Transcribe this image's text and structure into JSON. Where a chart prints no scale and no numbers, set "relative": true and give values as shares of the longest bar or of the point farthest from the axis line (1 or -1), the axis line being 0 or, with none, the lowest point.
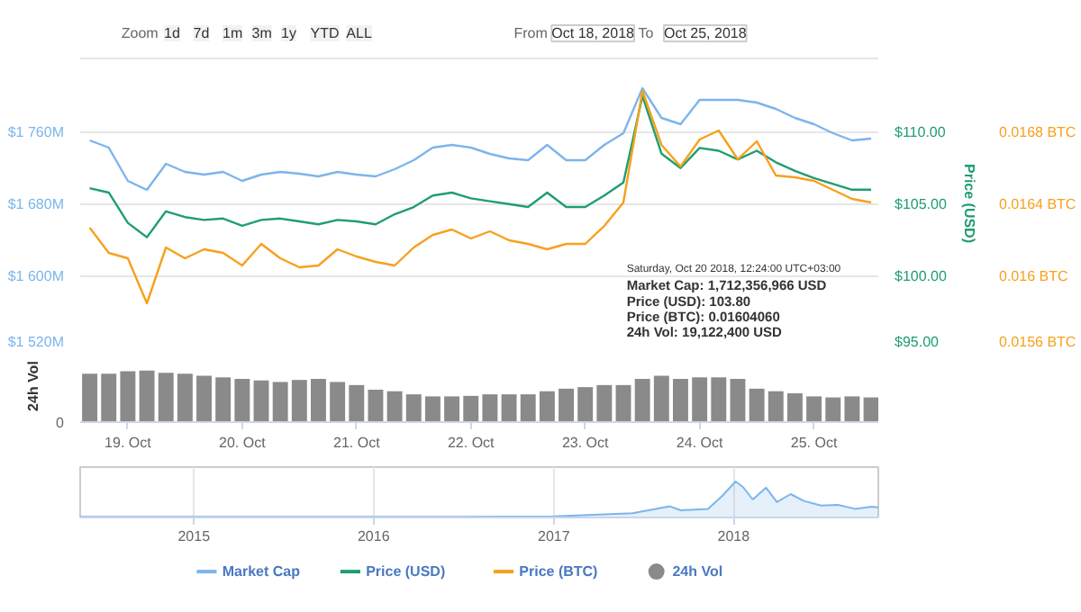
{
  "chart_data": [
    {
      "type": "line",
      "x": [
        "2018-10-18T16:00",
        "2018-10-18T20:00",
        "2018-10-19T00:00",
        "2018-10-19T04:00",
        "2018-10-19T08:00",
        "2018-10-19T12:00",
        "2018-10-19T16:00",
        "2018-10-19T20:00",
        "2018-10-20T00:00",
        "2018-10-20T04:00",
        "2018-10-20T08:00",
        "2018-10-20T12:00",
        "2018-10-20T16:00",
        "2018-10-20T20:00",
        "2018-10-21T00:00",
        "2018-10-21T04:00",
        "2018-10-21T08:00",
        "2018-10-21T12:00",
        "2018-10-21T16:00",
        "2018-10-21T20:00",
        "2018-10-22T00:00",
        "2018-10-22T04:00",
        "2018-10-22T08:00",
        "2018-10-22T12:00",
        "2018-10-22T16:00",
        "2018-10-22T20:00",
        "2018-10-23T00:00",
        "2018-10-23T04:00",
        "2018-10-23T08:00",
        "2018-10-23T12:00",
        "2018-10-23T16:00",
        "2018-10-23T20:00",
        "2018-10-24T00:00",
        "2018-10-24T04:00",
        "2018-10-24T08:00",
        "2018-10-24T12:00",
        "2018-10-24T16:00",
        "2018-10-24T20:00",
        "2018-10-25T00:00",
        "2018-10-25T04:00",
        "2018-10-25T08:00",
        "2018-10-25T12:00"
      ],
      "xlim": [
        "2018-10-18T14:00",
        "2018-10-25T13:30"
      ],
      "ylim": [
        1520,
        1842
      ],
      "yticks": [
        {
          "value": 1520,
          "label": "$1 520M"
        },
        {
          "value": 1600,
          "label": "$1 600M"
        },
        {
          "value": 1680,
          "label": "$1 680M"
        },
        {
          "value": 1760,
          "label": "$1 760M"
        }
      ],
      "y2lim": [
        95,
        115.1
      ],
      "y2ticks": [
        {
          "value": 95,
          "label": "$95.00"
        },
        {
          "value": 100,
          "label": "$100.00"
        },
        {
          "value": 105,
          "label": "$105.00"
        },
        {
          "value": 110,
          "label": "$110.00"
        }
      ],
      "y2label": "Price (USD)",
      "y3lim": [
        0.0156,
        0.01721
      ],
      "y3ticks": [
        {
          "value": 0.0156,
          "label": "0.0156 BTC"
        },
        {
          "value": 0.016,
          "label": "0.016 BTC"
        },
        {
          "value": 0.0164,
          "label": "0.0164 BTC"
        },
        {
          "value": 0.0168,
          "label": "0.0168 BTC"
        }
      ],
      "grid": "y",
      "tick_labels": "y",
      "legend": "bottom",
      "annotations": [
        "Zoom",
        "1d",
        "7d",
        "1m",
        "3m",
        "1y",
        "YTD",
        "ALL",
        "From",
        "Oct 18, 2018",
        "To",
        "Oct 25, 2018",
        "Saturday, Oct 20 2018, 12:24:00 UTC+03:00\nMarket Cap: 1,712,356,966 USD\nPrice (USD): 103.80\nPrice (BTC): 0.01604060\n24h Vol: 19,122,400 USD"
      ],
      "series": [
        {
          "name": "Market Cap",
          "color": "#7cb5ec",
          "values": [
            1751,
            1743,
            1706,
            1696,
            1725,
            1716,
            1713,
            1716,
            1706,
            1713,
            1716,
            1714,
            1711,
            1716,
            1713,
            1711,
            1719,
            1729,
            1743,
            1746,
            1743,
            1736,
            1731,
            1729,
            1746,
            1729,
            1729,
            1746,
            1759,
            1809,
            1776,
            1769,
            1796,
            1796,
            1796,
            1793,
            1786,
            1776,
            1769,
            1759,
            1751,
            1753
          ]
        },
        {
          "name": "Price (USD)",
          "color": "#1f9e6e",
          "axis": "y2",
          "values": [
            106.1,
            105.8,
            103.7,
            102.7,
            104.5,
            104.1,
            103.9,
            104.0,
            103.5,
            103.9,
            104.0,
            103.8,
            103.6,
            103.9,
            103.8,
            103.6,
            104.3,
            104.8,
            105.6,
            105.8,
            105.4,
            105.2,
            105.0,
            104.8,
            105.8,
            104.8,
            104.8,
            105.6,
            106.5,
            112.5,
            108.5,
            107.5,
            108.9,
            108.7,
            108.1,
            108.7,
            107.9,
            107.3,
            106.8,
            106.4,
            106.0,
            106.0
          ]
        },
        {
          "name": "Price (BTC)",
          "color": "#f7a01c",
          "axis": "y3",
          "values": [
            0.01627,
            0.01613,
            0.0161,
            0.01585,
            0.01616,
            0.0161,
            0.01615,
            0.01613,
            0.01606,
            0.01618,
            0.0161,
            0.01605,
            0.01606,
            0.01615,
            0.01611,
            0.01608,
            0.01606,
            0.01616,
            0.01623,
            0.01626,
            0.01621,
            0.01625,
            0.0162,
            0.01618,
            0.01615,
            0.01618,
            0.01618,
            0.01628,
            0.01641,
            0.01703,
            0.01673,
            0.01661,
            0.01676,
            0.01681,
            0.01665,
            0.01675,
            0.01656,
            0.01655,
            0.01653,
            0.01648,
            0.01643,
            0.01641
          ]
        }
      ]
    },
    {
      "type": "bar",
      "relative": true,
      "x": [
        "2018-10-18T16:00",
        "2018-10-18T20:00",
        "2018-10-19T00:00",
        "2018-10-19T04:00",
        "2018-10-19T08:00",
        "2018-10-19T12:00",
        "2018-10-19T16:00",
        "2018-10-19T20:00",
        "2018-10-20T00:00",
        "2018-10-20T04:00",
        "2018-10-20T08:00",
        "2018-10-20T12:00",
        "2018-10-20T16:00",
        "2018-10-20T20:00",
        "2018-10-21T00:00",
        "2018-10-21T04:00",
        "2018-10-21T08:00",
        "2018-10-21T12:00",
        "2018-10-21T16:00",
        "2018-10-21T20:00",
        "2018-10-22T00:00",
        "2018-10-22T04:00",
        "2018-10-22T08:00",
        "2018-10-22T12:00",
        "2018-10-22T16:00",
        "2018-10-22T20:00",
        "2018-10-23T00:00",
        "2018-10-23T04:00",
        "2018-10-23T08:00",
        "2018-10-23T12:00",
        "2018-10-23T16:00",
        "2018-10-23T20:00",
        "2018-10-24T00:00",
        "2018-10-24T04:00",
        "2018-10-24T08:00",
        "2018-10-24T12:00",
        "2018-10-24T16:00",
        "2018-10-24T20:00",
        "2018-10-25T00:00",
        "2018-10-25T04:00",
        "2018-10-25T08:00",
        "2018-10-25T12:00"
      ],
      "xlim": [
        "2018-10-18T14:00",
        "2018-10-25T13:30"
      ],
      "xticks": [
        {
          "value": "2018-10-19",
          "label": "19. Oct"
        },
        {
          "value": "2018-10-20",
          "label": "20. Oct"
        },
        {
          "value": "2018-10-21",
          "label": "21. Oct"
        },
        {
          "value": "2018-10-22",
          "label": "22. Oct"
        },
        {
          "value": "2018-10-23",
          "label": "23. Oct"
        },
        {
          "value": "2018-10-24",
          "label": "24. Oct"
        },
        {
          "value": "2018-10-25",
          "label": "25. Oct"
        }
      ],
      "ylabel": "24h Vol",
      "annotations": [
        "0"
      ],
      "legend": "bottom",
      "series": [
        {
          "name": "24h Vol",
          "color": "#8a8a8a",
          "values": [
            0.94,
            0.94,
            0.99,
            1,
            0.96,
            0.94,
            0.9,
            0.87,
            0.84,
            0.81,
            0.78,
            0.82,
            0.84,
            0.78,
            0.72,
            0.63,
            0.6,
            0.54,
            0.5,
            0.5,
            0.51,
            0.54,
            0.54,
            0.54,
            0.6,
            0.65,
            0.68,
            0.72,
            0.72,
            0.84,
            0.9,
            0.84,
            0.87,
            0.87,
            0.84,
            0.65,
            0.6,
            0.56,
            0.5,
            0.48,
            0.5,
            0.48
          ]
        }
      ]
    },
    {
      "type": "area",
      "relative": true,
      "x": [
        "2014-05-15",
        "2015-06-01",
        "2016-06-01",
        "2017-01-01",
        "2017-06-10",
        "2017-08-25",
        "2017-09-16",
        "2017-11-10",
        "2017-12-09",
        "2018-01-05",
        "2018-01-20",
        "2018-02-09",
        "2018-03-08",
        "2018-03-30",
        "2018-04-27",
        "2018-05-24",
        "2018-06-28",
        "2018-08-01",
        "2018-09-05",
        "2018-10-08",
        "2018-10-22"
      ],
      "xlim": [
        "2014-05-15",
        "2018-10-22"
      ],
      "xticks": [
        {
          "value": "2015-01-01",
          "label": "2015"
        },
        {
          "value": "2016-01-01",
          "label": "2016"
        },
        {
          "value": "2017-01-01",
          "label": "2017"
        },
        {
          "value": "2018-01-01",
          "label": "2018"
        }
      ],
      "grid": "x",
      "series": [
        {
          "color": "#7cb5ec",
          "values": [
            0.02,
            0.02,
            0.02,
            0.03,
            0.12,
            0.31,
            0.2,
            0.24,
            0.6,
            1,
            0.85,
            0.5,
            0.83,
            0.43,
            0.65,
            0.46,
            0.33,
            0.35,
            0.24,
            0.3,
            0.28
          ]
        }
      ]
    }
  ]
}
